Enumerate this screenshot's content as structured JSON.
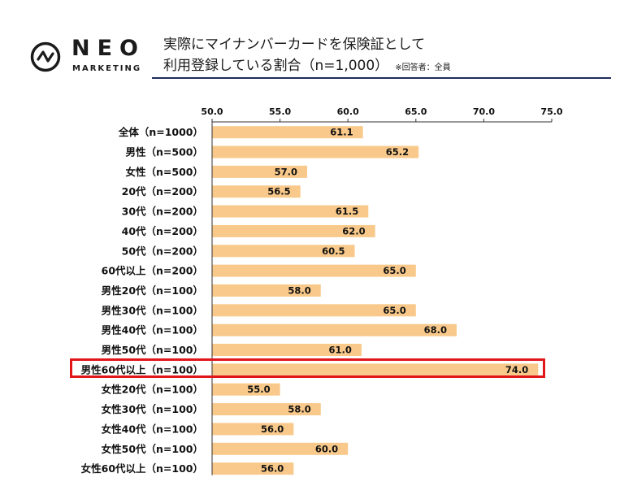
{
  "header": {
    "logo_text": "NEO",
    "logo_subtext": "MARKETING",
    "title_line1": "実際にマイナンバーカードを保険証として",
    "title_line2": "利用登録している割合（n=1,000）",
    "note": "※回答者：全員"
  },
  "colors": {
    "bar": "#f8c98a",
    "highlight": "#e0161a",
    "rule": "#1f2b5a"
  },
  "chart_data": {
    "type": "bar",
    "orientation": "horizontal",
    "title": "実際にマイナンバーカードを保険証として利用登録している割合（n=1,000）",
    "xlim": [
      50.0,
      75.0
    ],
    "ticks": [
      "50.0",
      "55.0",
      "60.0",
      "65.0",
      "70.0",
      "75.0"
    ],
    "categories": [
      "全体（n=1000）",
      "男性（n=500）",
      "女性（n=500）",
      "20代（n=200）",
      "30代（n=200）",
      "40代（n=200）",
      "50代（n=200）",
      "60代以上（n=200）",
      "男性20代（n=100）",
      "男性30代（n=100）",
      "男性40代（n=100）",
      "男性50代（n=100）",
      "男性60代以上（n=100）",
      "女性20代（n=100）",
      "女性30代（n=100）",
      "女性40代（n=100）",
      "女性50代（n=100）",
      "女性60代以上（n=100）"
    ],
    "values": [
      61.1,
      65.2,
      57.0,
      56.5,
      61.5,
      62.0,
      60.5,
      65.0,
      58.0,
      65.0,
      68.0,
      61.0,
      74.0,
      55.0,
      58.0,
      56.0,
      60.0,
      56.0
    ],
    "value_labels": [
      "61.1",
      "65.2",
      "57.0",
      "56.5",
      "61.5",
      "62.0",
      "60.5",
      "65.0",
      "58.0",
      "65.0",
      "68.0",
      "61.0",
      "74.0",
      "55.0",
      "58.0",
      "56.0",
      "60.0",
      "56.0"
    ],
    "highlighted_category": "男性60代以上（n=100）"
  }
}
